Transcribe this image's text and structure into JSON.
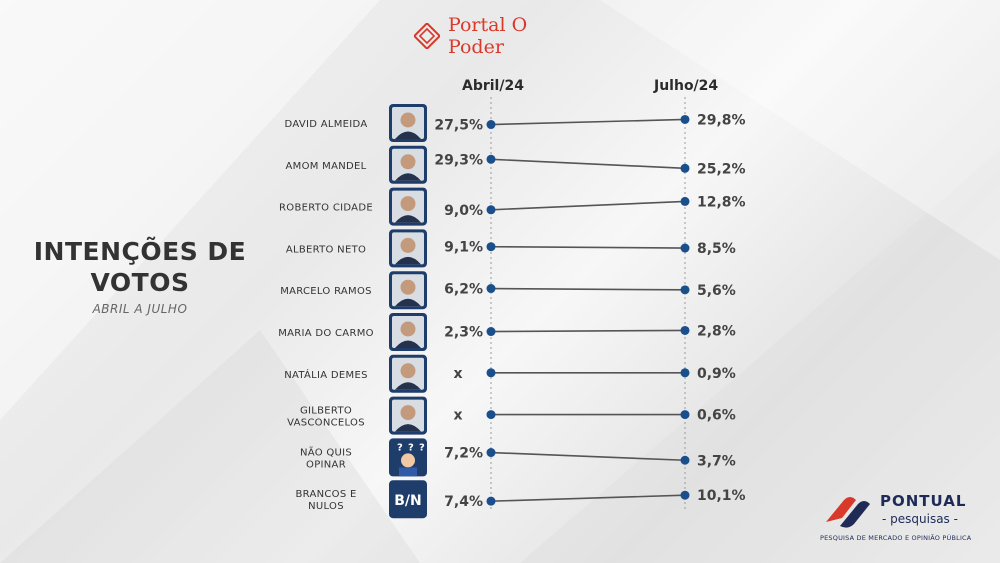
{
  "brand": {
    "header": "Portal O Poder",
    "footer_name": "PONTUAL",
    "footer_sub": "- pesquisas -",
    "footer_tagline": "PESQUISA DE MERCADO E OPINIÃO PÚBLICA"
  },
  "title": {
    "line1": "INTENÇÕES DE",
    "line2": "VOTOS",
    "subtitle": "ABRIL A JULHO"
  },
  "colors": {
    "accent": "#1b4f8c",
    "line": "#555555",
    "brand_red": "#d9392b",
    "brand_navy": "#1f2a57"
  },
  "chart_data": {
    "type": "line",
    "x": [
      "Abril/24",
      "Julho/24"
    ],
    "categories": [
      "DAVID ALMEIDA",
      "AMOM MANDEL",
      "ROBERTO CIDADE",
      "ALBERTO NETO",
      "MARCELO RAMOS",
      "MARIA DO CARMO",
      "NATÁLIA DEMES",
      "GILBERTO VASCONCELOS",
      "NÃO QUIS OPINAR",
      "BRANCOS E NULOS"
    ],
    "series": [
      {
        "name": "DAVID ALMEIDA",
        "label_lines": [
          "DAVID ALMEIDA"
        ],
        "icon": "photo-icon",
        "values": [
          27.5,
          29.8
        ],
        "labels": [
          "27,5%",
          "29,8%"
        ]
      },
      {
        "name": "AMOM MANDEL",
        "label_lines": [
          "AMOM MANDEL"
        ],
        "icon": "photo-icon",
        "values": [
          29.3,
          25.2
        ],
        "labels": [
          "29,3%",
          "25,2%"
        ]
      },
      {
        "name": "ROBERTO CIDADE",
        "label_lines": [
          "ROBERTO CIDADE"
        ],
        "icon": "photo-icon",
        "values": [
          9.0,
          12.8
        ],
        "labels": [
          "9,0%",
          "12,8%"
        ]
      },
      {
        "name": "ALBERTO NETO",
        "label_lines": [
          "ALBERTO NETO"
        ],
        "icon": "photo-icon",
        "values": [
          9.1,
          8.5
        ],
        "labels": [
          "9,1%",
          "8,5%"
        ]
      },
      {
        "name": "MARCELO RAMOS",
        "label_lines": [
          "MARCELO RAMOS"
        ],
        "icon": "photo-icon",
        "values": [
          6.2,
          5.6
        ],
        "labels": [
          "6,2%",
          "5,6%"
        ]
      },
      {
        "name": "MARIA DO CARMO",
        "label_lines": [
          "MARIA DO CARMO"
        ],
        "icon": "photo-icon",
        "values": [
          2.3,
          2.8
        ],
        "labels": [
          "2,3%",
          "2,8%"
        ]
      },
      {
        "name": "NATÁLIA DEMES",
        "label_lines": [
          "NATÁLIA DEMES"
        ],
        "icon": "photo-icon",
        "values": [
          null,
          0.9
        ],
        "labels": [
          "x",
          "0,9%"
        ]
      },
      {
        "name": "GILBERTO VASCONCELOS",
        "label_lines": [
          "GILBERTO",
          "VASCONCELOS"
        ],
        "icon": "photo-icon",
        "values": [
          null,
          0.6
        ],
        "labels": [
          "x",
          "0,6%"
        ]
      },
      {
        "name": "NÃO QUIS OPINAR",
        "label_lines": [
          "NÃO QUIS",
          "OPINAR"
        ],
        "icon": "question-person-icon",
        "values": [
          7.2,
          3.7
        ],
        "labels": [
          "7,2%",
          "3,7%"
        ]
      },
      {
        "name": "BRANCOS E NULOS",
        "label_lines": [
          "BRANCOS E",
          "NULOS"
        ],
        "icon": "bn-badge-icon",
        "badge_text": "B/N",
        "values": [
          7.4,
          10.1
        ],
        "labels": [
          "7,4%",
          "10,1%"
        ]
      }
    ]
  }
}
